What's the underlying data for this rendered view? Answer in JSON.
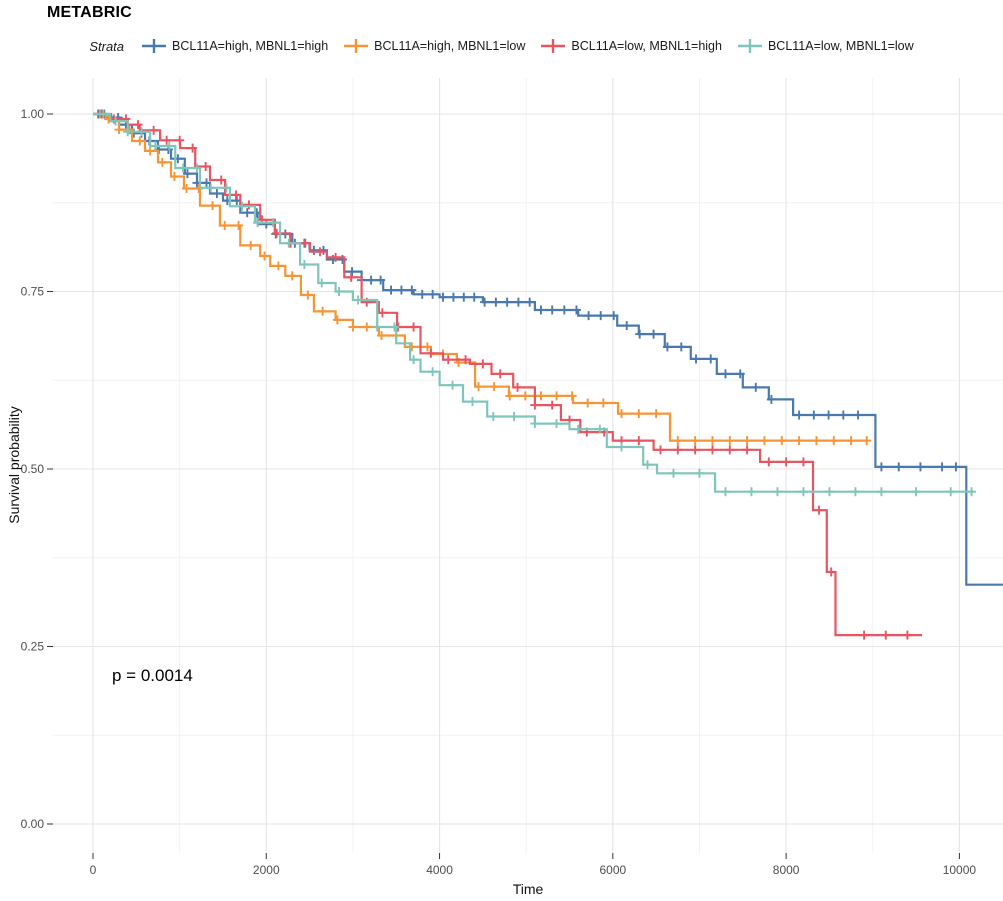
{
  "title": "METABRIC",
  "p_value_label": "p = 0.0014",
  "legend": {
    "title": "Strata"
  },
  "axes": {
    "x_title": "Time",
    "y_title": "Survival probability"
  },
  "chart_data": {
    "type": "line",
    "subtype": "kaplan-meier-step-curves",
    "title": "METABRIC",
    "xlabel": "Time",
    "ylabel": "Survival probability",
    "xlim": [
      0,
      10510
    ],
    "ylim": [
      0,
      1
    ],
    "grid": true,
    "legend_position": "top",
    "x_ticks": [
      0,
      2000,
      4000,
      6000,
      8000,
      10000
    ],
    "x_tick_labels": [
      "0",
      "2000",
      "4000",
      "6000",
      "8000",
      "10000"
    ],
    "x_minor": [
      1000,
      3000,
      5000,
      7000,
      9000
    ],
    "y_ticks": [
      0,
      0.25,
      0.5,
      0.75,
      1
    ],
    "y_tick_labels": [
      "0.00",
      "0.25",
      "0.50",
      "0.75",
      "1.00"
    ],
    "y_minor": [
      0.125,
      0.375,
      0.625,
      0.875
    ],
    "annotation": {
      "text": "p = 0.0014",
      "time": 250,
      "prob": 0.19
    },
    "series": [
      {
        "name": "BCL11A=high, MBNL1=high",
        "color": "#4A79AD",
        "steps": [
          [
            0,
            1
          ],
          [
            150,
            0.995
          ],
          [
            300,
            0.985
          ],
          [
            450,
            0.973
          ],
          [
            600,
            0.962
          ],
          [
            750,
            0.95
          ],
          [
            900,
            0.937
          ],
          [
            1060,
            0.916
          ],
          [
            1200,
            0.903
          ],
          [
            1350,
            0.888
          ],
          [
            1500,
            0.878
          ],
          [
            1700,
            0.861
          ],
          [
            1900,
            0.845
          ],
          [
            2100,
            0.831
          ],
          [
            2300,
            0.818
          ],
          [
            2500,
            0.808
          ],
          [
            2700,
            0.795
          ],
          [
            2900,
            0.778
          ],
          [
            3100,
            0.766
          ],
          [
            3350,
            0.752
          ],
          [
            3700,
            0.746
          ],
          [
            4000,
            0.742
          ],
          [
            4500,
            0.735
          ],
          [
            5100,
            0.724
          ],
          [
            5600,
            0.716
          ],
          [
            6050,
            0.702
          ],
          [
            6300,
            0.69
          ],
          [
            6600,
            0.672
          ],
          [
            6900,
            0.655
          ],
          [
            7200,
            0.634
          ],
          [
            7500,
            0.615
          ],
          [
            7800,
            0.598
          ],
          [
            8080,
            0.576
          ],
          [
            9030,
            0.503
          ],
          [
            10080,
            0.337
          ],
          [
            10510,
            0.337
          ]
        ],
        "censors": [
          60,
          130,
          210,
          290,
          380,
          470,
          560,
          650,
          760,
          870,
          980,
          1090,
          1200,
          1310,
          1430,
          1550,
          1660,
          1780,
          1890,
          2000,
          2110,
          2220,
          2330,
          2440,
          2550,
          2660,
          2770,
          2880,
          2990,
          3100,
          3210,
          3320,
          3440,
          3560,
          3680,
          3800,
          3920,
          4040,
          4160,
          4280,
          4400,
          4520,
          4650,
          4780,
          4910,
          5040,
          5170,
          5300,
          5440,
          5580,
          5720,
          5860,
          6010,
          6160,
          6310,
          6470,
          6630,
          6790,
          6960,
          7130,
          7300,
          7470,
          7650,
          7830,
          8150,
          8320,
          8490,
          8660,
          8830,
          9100,
          9300,
          9550,
          9800,
          9960
        ]
      },
      {
        "name": "BCL11A=high, MBNL1=low",
        "color": "#F79435",
        "steps": [
          [
            0,
            1
          ],
          [
            150,
            0.993
          ],
          [
            300,
            0.978
          ],
          [
            450,
            0.962
          ],
          [
            600,
            0.948
          ],
          [
            750,
            0.932
          ],
          [
            900,
            0.912
          ],
          [
            1050,
            0.895
          ],
          [
            1235,
            0.871
          ],
          [
            1465,
            0.843
          ],
          [
            1700,
            0.815
          ],
          [
            1930,
            0.8
          ],
          [
            2045,
            0.786
          ],
          [
            2220,
            0.772
          ],
          [
            2400,
            0.745
          ],
          [
            2550,
            0.722
          ],
          [
            2800,
            0.71
          ],
          [
            3000,
            0.7
          ],
          [
            3300,
            0.688
          ],
          [
            3600,
            0.672
          ],
          [
            3900,
            0.662
          ],
          [
            4200,
            0.65
          ],
          [
            4410,
            0.616
          ],
          [
            4800,
            0.603
          ],
          [
            5540,
            0.593
          ],
          [
            6060,
            0.578
          ],
          [
            6660,
            0.54
          ],
          [
            8950,
            0.54
          ]
        ],
        "censors": [
          80,
          180,
          300,
          420,
          540,
          660,
          800,
          940,
          1080,
          1220,
          1380,
          1520,
          1680,
          1820,
          1980,
          2140,
          2300,
          2480,
          2650,
          2820,
          3000,
          3160,
          3330,
          3500,
          3680,
          3860,
          4040,
          4220,
          4450,
          4630,
          4810,
          4990,
          5170,
          5350,
          5530,
          5710,
          5890,
          6100,
          6300,
          6500,
          6750,
          6950,
          7150,
          7350,
          7550,
          7750,
          7950,
          8150,
          8350,
          8550,
          8750,
          8930
        ]
      },
      {
        "name": "BCL11A=low, MBNL1=high",
        "color": "#E85560",
        "steps": [
          [
            0,
            1
          ],
          [
            200,
            0.993
          ],
          [
            400,
            0.985
          ],
          [
            540,
            0.977
          ],
          [
            775,
            0.963
          ],
          [
            1005,
            0.952
          ],
          [
            1180,
            0.926
          ],
          [
            1350,
            0.907
          ],
          [
            1525,
            0.886
          ],
          [
            1700,
            0.872
          ],
          [
            1930,
            0.851
          ],
          [
            2100,
            0.832
          ],
          [
            2275,
            0.818
          ],
          [
            2505,
            0.806
          ],
          [
            2700,
            0.798
          ],
          [
            2900,
            0.77
          ],
          [
            3100,
            0.735
          ],
          [
            3300,
            0.72
          ],
          [
            3510,
            0.7
          ],
          [
            3780,
            0.663
          ],
          [
            4040,
            0.654
          ],
          [
            4350,
            0.648
          ],
          [
            4600,
            0.634
          ],
          [
            4850,
            0.615
          ],
          [
            5100,
            0.59
          ],
          [
            5400,
            0.569
          ],
          [
            5625,
            0.552
          ],
          [
            6000,
            0.54
          ],
          [
            6470,
            0.527
          ],
          [
            7700,
            0.51
          ],
          [
            8310,
            0.442
          ],
          [
            8470,
            0.355
          ],
          [
            8570,
            0.266
          ],
          [
            9570,
            0.266
          ]
        ],
        "censors": [
          100,
          240,
          380,
          520,
          700,
          850,
          1000,
          1150,
          1300,
          1480,
          1650,
          1800,
          1950,
          2120,
          2280,
          2450,
          2620,
          2800,
          2980,
          3160,
          3340,
          3520,
          3700,
          3900,
          4100,
          4300,
          4500,
          4700,
          4900,
          5100,
          5300,
          5500,
          5700,
          5900,
          6100,
          6300,
          6550,
          6750,
          6950,
          7150,
          7350,
          7550,
          7800,
          8000,
          8200,
          8380,
          8520,
          8900,
          9150,
          9400
        ]
      },
      {
        "name": "BCL11A=low, MBNL1=low",
        "color": "#7FC5BC",
        "steps": [
          [
            0,
            1
          ],
          [
            200,
            0.99
          ],
          [
            400,
            0.975
          ],
          [
            660,
            0.955
          ],
          [
            950,
            0.924
          ],
          [
            1235,
            0.896
          ],
          [
            1580,
            0.87
          ],
          [
            1870,
            0.847
          ],
          [
            2160,
            0.818
          ],
          [
            2390,
            0.788
          ],
          [
            2600,
            0.762
          ],
          [
            2800,
            0.75
          ],
          [
            3000,
            0.738
          ],
          [
            3280,
            0.7
          ],
          [
            3500,
            0.677
          ],
          [
            3660,
            0.654
          ],
          [
            3780,
            0.637
          ],
          [
            4000,
            0.618
          ],
          [
            4270,
            0.595
          ],
          [
            4550,
            0.574
          ],
          [
            5100,
            0.564
          ],
          [
            5500,
            0.556
          ],
          [
            5930,
            0.531
          ],
          [
            6350,
            0.506
          ],
          [
            6510,
            0.494
          ],
          [
            7180,
            0.468
          ],
          [
            10160,
            0.468
          ]
        ],
        "censors": [
          120,
          260,
          400,
          560,
          720,
          880,
          1040,
          1200,
          1360,
          1540,
          1720,
          1900,
          2080,
          2260,
          2440,
          2640,
          2840,
          3060,
          3280,
          3480,
          3700,
          3920,
          4150,
          4380,
          4620,
          4860,
          5100,
          5350,
          5600,
          5850,
          6100,
          6400,
          6700,
          7000,
          7300,
          7600,
          7900,
          8200,
          8500,
          8800,
          9100,
          9500,
          9900,
          10140
        ]
      }
    ]
  }
}
